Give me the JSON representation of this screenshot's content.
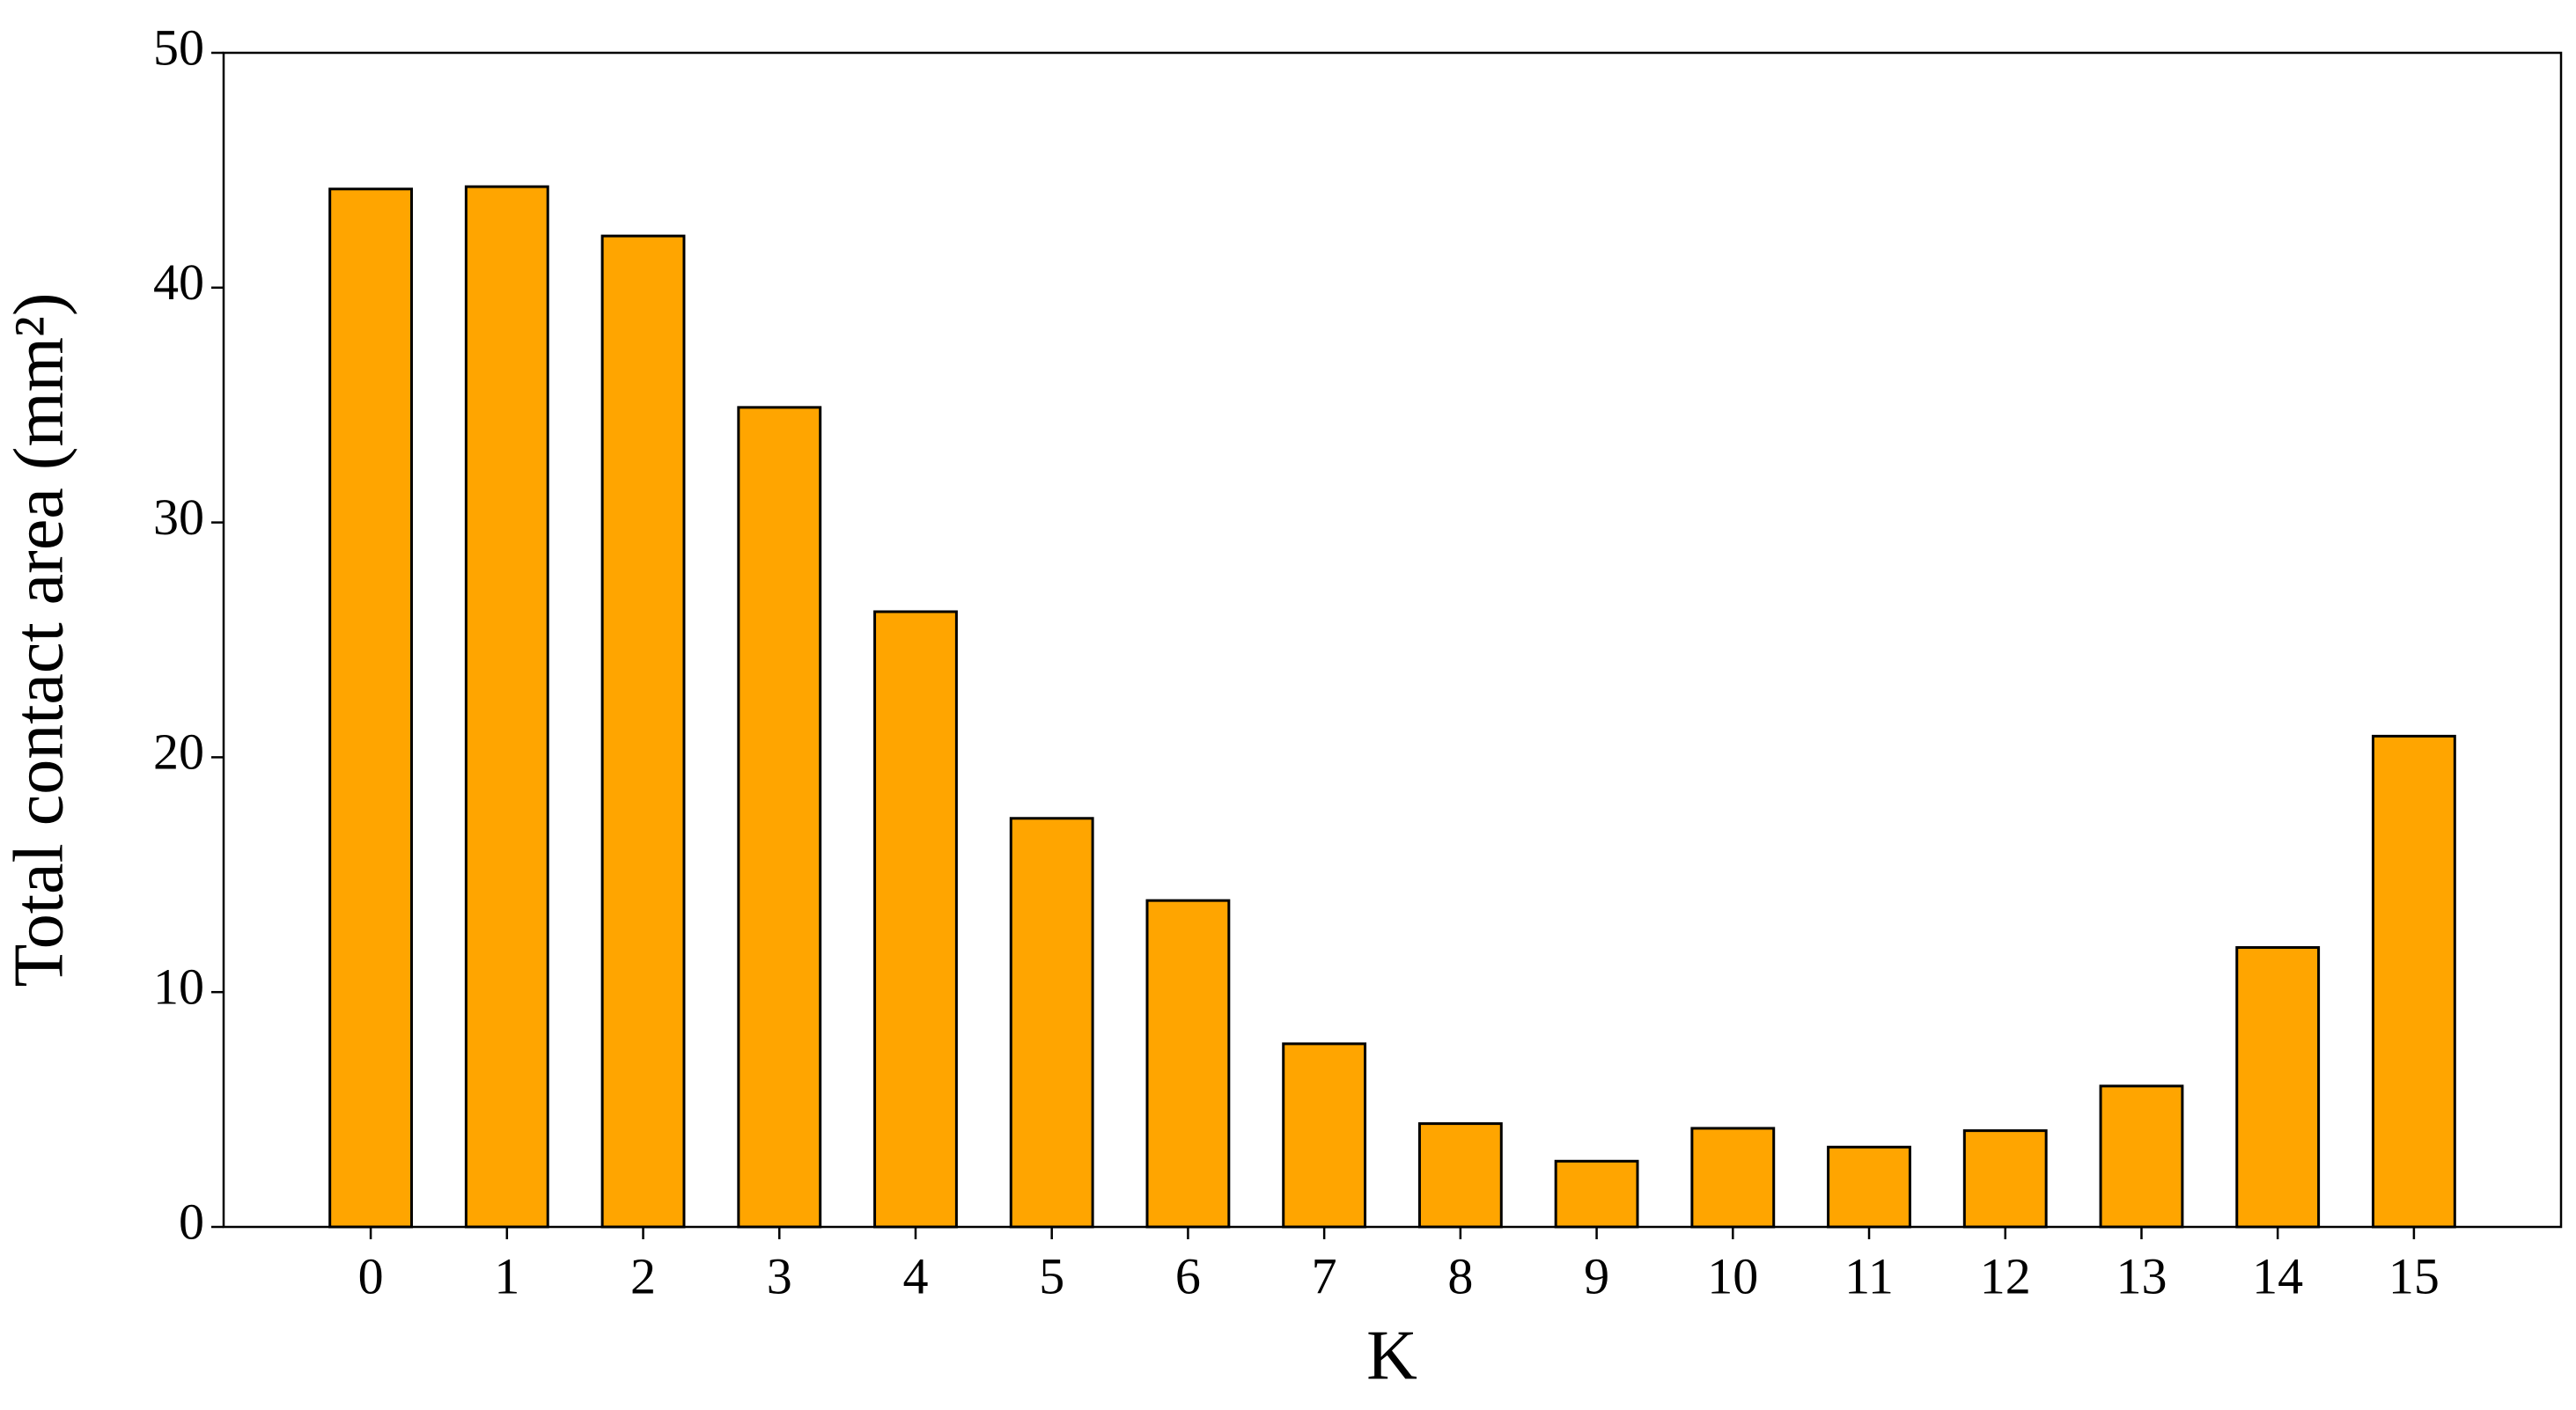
{
  "chart_data": {
    "type": "bar",
    "xlabel": "K",
    "ylabel": "Total contact area (mm²)",
    "x": [
      0,
      1,
      2,
      3,
      4,
      5,
      6,
      7,
      8,
      9,
      10,
      11,
      12,
      13,
      14,
      15
    ],
    "values": [
      44.2,
      44.3,
      42.2,
      34.9,
      26.2,
      17.4,
      13.9,
      7.8,
      4.4,
      2.8,
      4.2,
      3.4,
      4.1,
      6.0,
      11.9,
      20.9
    ],
    "color": "#ffa500",
    "edgecolor": "#000000",
    "xlim": [
      -1.08,
      16.08
    ],
    "xticks": [
      0,
      1,
      2,
      3,
      4,
      5,
      6,
      7,
      8,
      9,
      10,
      11,
      12,
      13,
      14,
      15
    ],
    "ylim": [
      0,
      50
    ],
    "yticks": [
      0,
      10,
      20,
      30,
      40,
      50
    ],
    "grid": false
  }
}
